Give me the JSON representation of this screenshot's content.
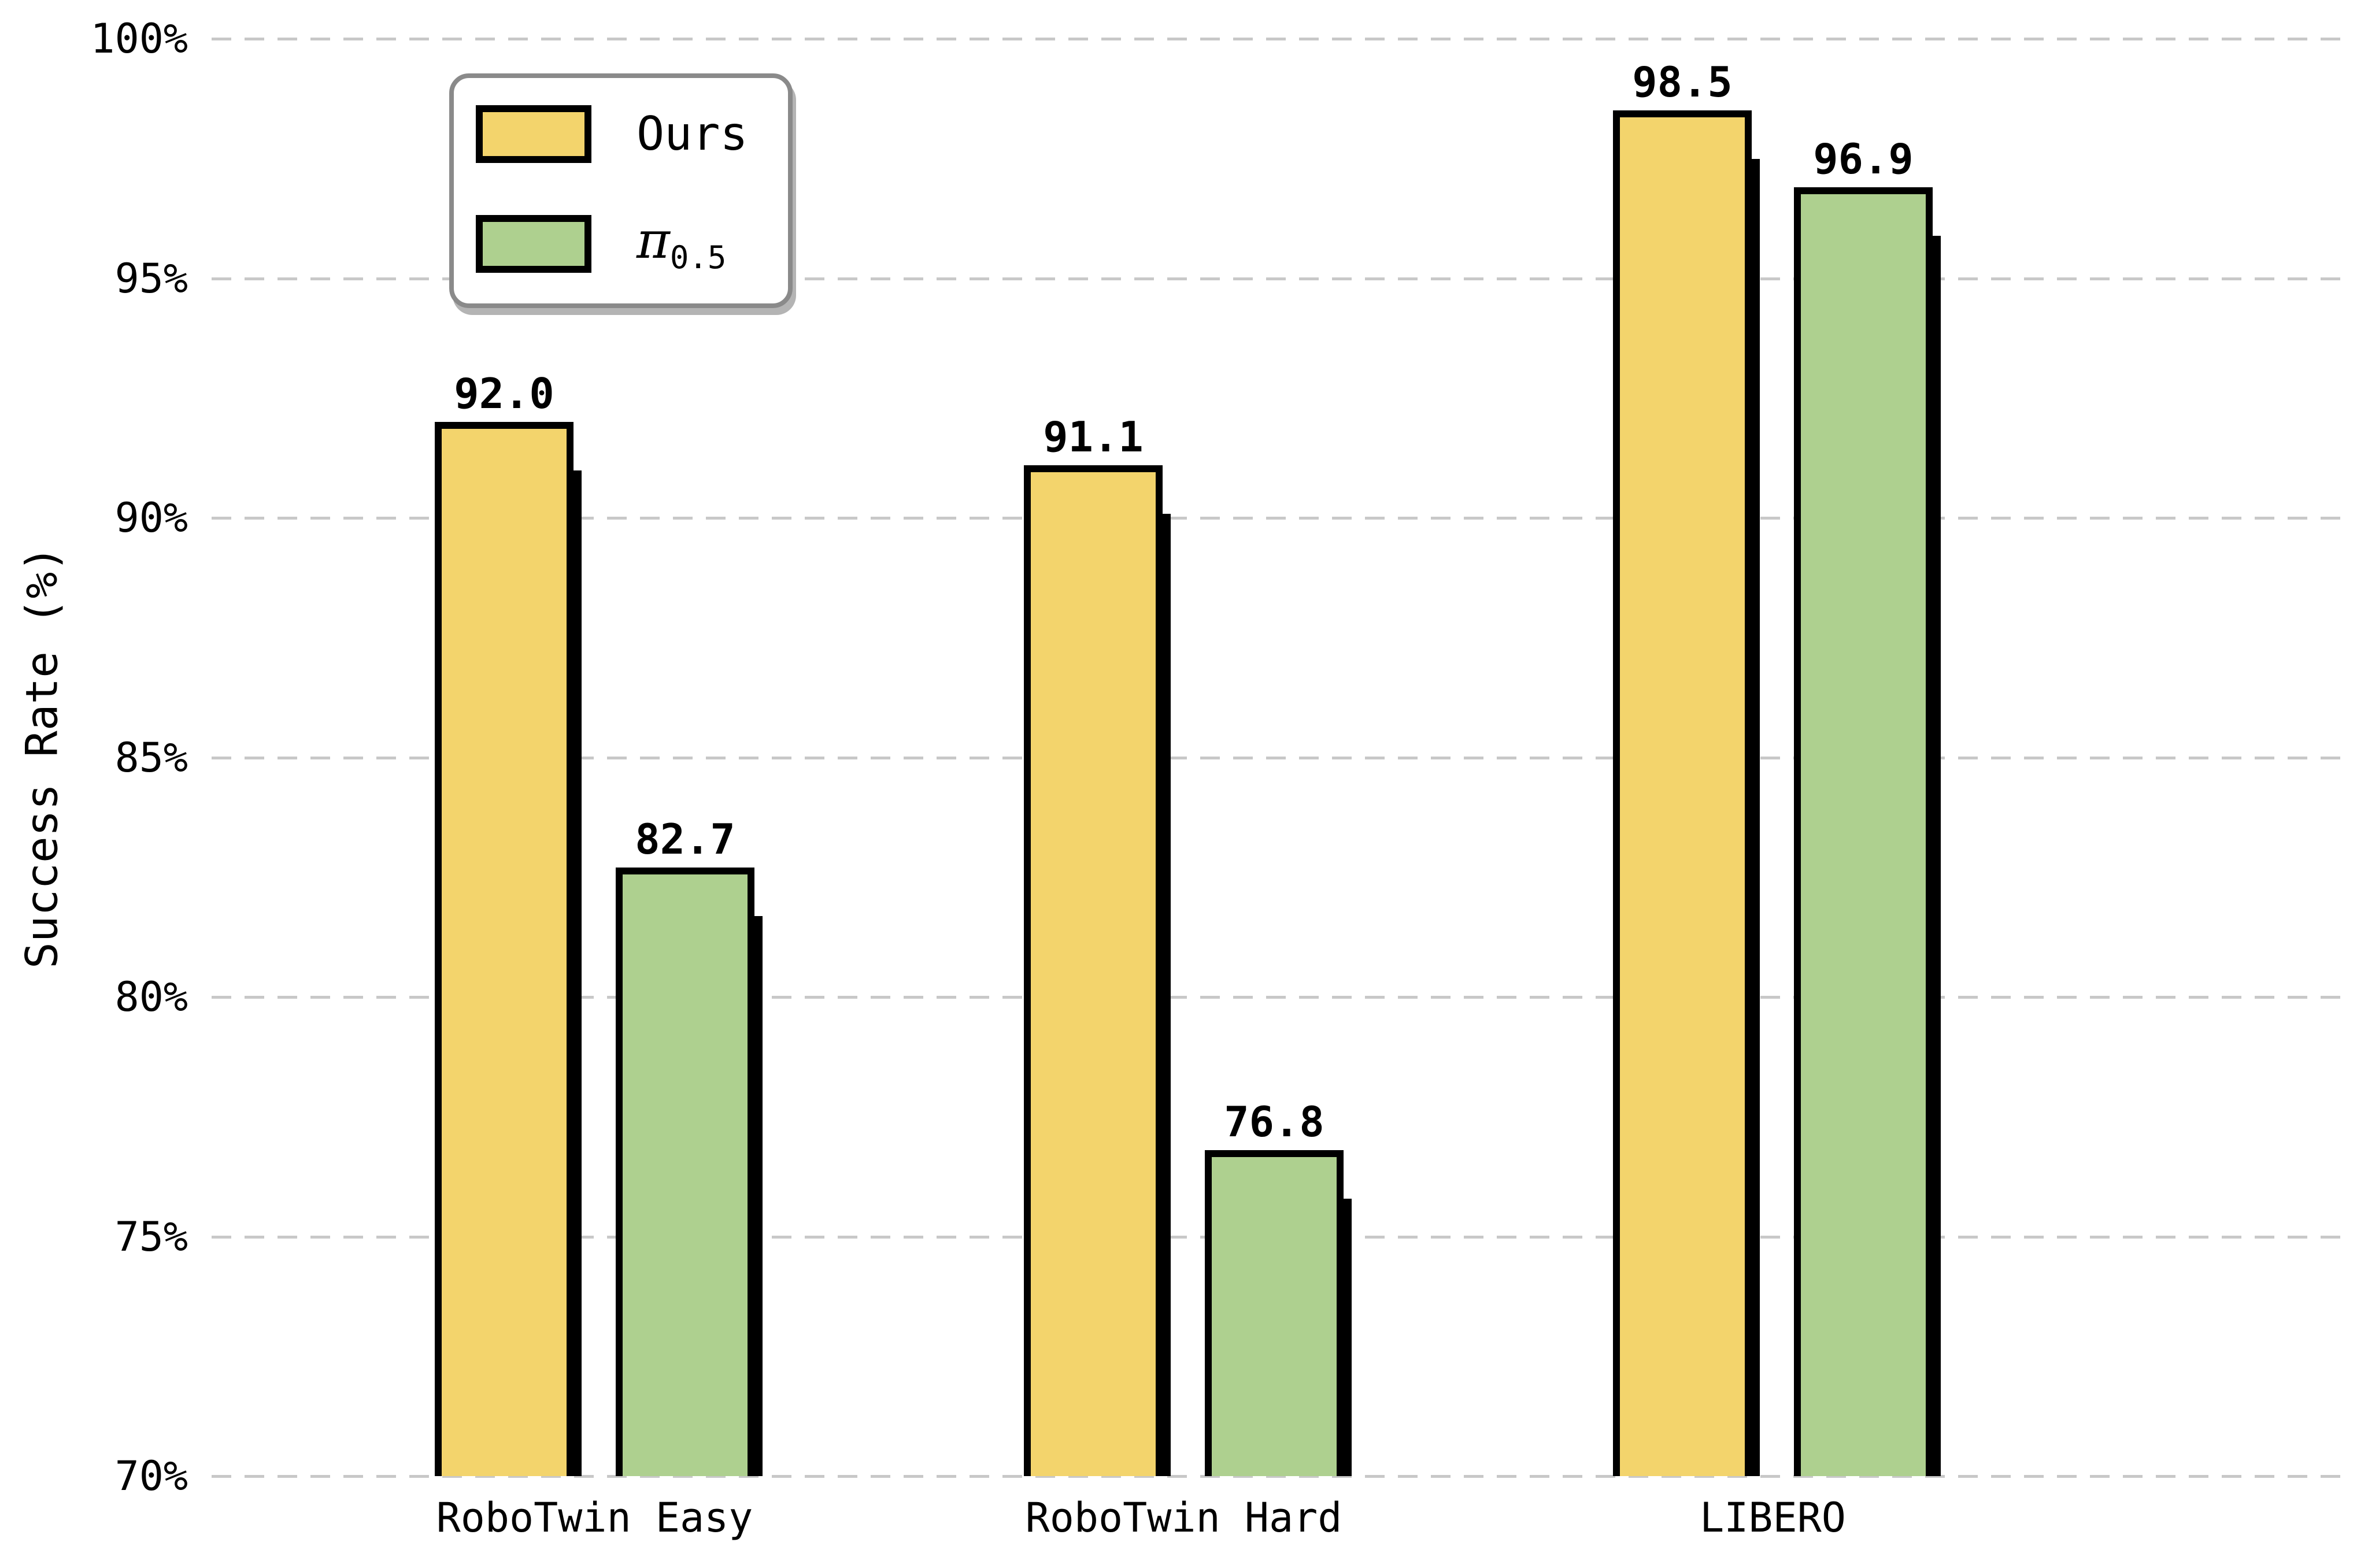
{
  "chart_data": {
    "type": "bar",
    "categories": [
      "RoboTwin Easy",
      "RoboTwin Hard",
      "LIBERO"
    ],
    "series": [
      {
        "name": "Ours",
        "values": [
          92.0,
          91.1,
          98.5
        ],
        "color": "#F3D46C"
      },
      {
        "name": "π0.5",
        "name_base": "π",
        "name_sub": "0.5",
        "values": [
          82.7,
          76.8,
          96.9
        ],
        "color": "#AED08F"
      }
    ],
    "value_labels": [
      [
        "92.0",
        "91.1",
        "98.5"
      ],
      [
        "82.7",
        "76.8",
        "96.9"
      ]
    ],
    "ylabel": "Success Rate (%)",
    "xlabel": "",
    "ylim": [
      70,
      100
    ],
    "ytick_step": 5,
    "ytick_labels": [
      "70%",
      "75%",
      "80%",
      "85%",
      "90%",
      "95%",
      "100%"
    ],
    "grid": "horizontal-dashed",
    "legend_position": "upper-left",
    "bar_edge_color": "#000000",
    "bar_shadow_color": "#000000"
  },
  "colors": {
    "background": "#ffffff",
    "grid": "#c8c8c8",
    "legend_border": "#8a8a8a",
    "legend_shadow": "#b4b4b4",
    "text": "#000000"
  }
}
